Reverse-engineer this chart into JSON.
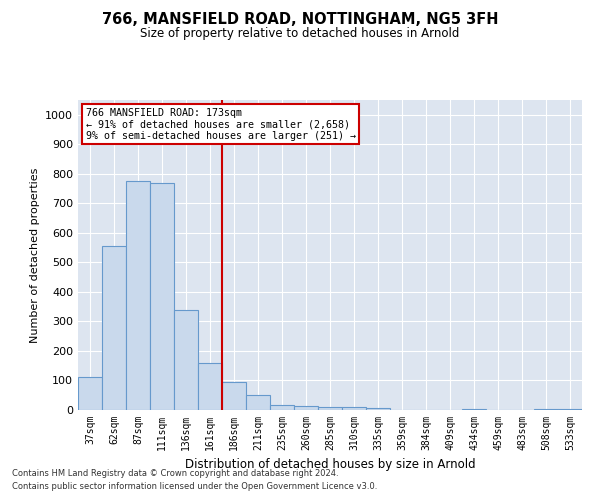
{
  "title": "766, MANSFIELD ROAD, NOTTINGHAM, NG5 3FH",
  "subtitle": "Size of property relative to detached houses in Arnold",
  "xlabel": "Distribution of detached houses by size in Arnold",
  "ylabel": "Number of detached properties",
  "footer1": "Contains HM Land Registry data © Crown copyright and database right 2024.",
  "footer2": "Contains public sector information licensed under the Open Government Licence v3.0.",
  "property_label": "766 MANSFIELD ROAD: 173sqm",
  "annotation_line1": "← 91% of detached houses are smaller (2,658)",
  "annotation_line2": "9% of semi-detached houses are larger (251) →",
  "bar_color": "#c9d9ec",
  "bar_edge_color": "#6699cc",
  "vline_color": "#cc0000",
  "annotation_box_color": "#cc0000",
  "categories": [
    "37sqm",
    "62sqm",
    "87sqm",
    "111sqm",
    "136sqm",
    "161sqm",
    "186sqm",
    "211sqm",
    "235sqm",
    "260sqm",
    "285sqm",
    "310sqm",
    "335sqm",
    "359sqm",
    "384sqm",
    "409sqm",
    "434sqm",
    "459sqm",
    "483sqm",
    "508sqm",
    "533sqm"
  ],
  "values": [
    113,
    557,
    775,
    770,
    340,
    160,
    95,
    50,
    18,
    15,
    10,
    10,
    7,
    0,
    0,
    0,
    5,
    0,
    0,
    5,
    5
  ],
  "ylim": [
    0,
    1050
  ],
  "yticks": [
    0,
    100,
    200,
    300,
    400,
    500,
    600,
    700,
    800,
    900,
    1000
  ],
  "vline_position": 5.5,
  "figsize": [
    6.0,
    5.0
  ],
  "dpi": 100,
  "bg_color": "#dde5f0"
}
